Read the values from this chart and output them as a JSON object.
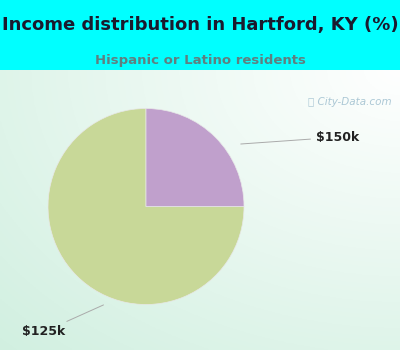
{
  "title": "Income distribution in Hartford, KY (%)",
  "subtitle": "Hispanic or Latino residents",
  "title_color": "#1a1a2e",
  "subtitle_color": "#5f8080",
  "top_bg": "#00FFFF",
  "slices": [
    75.0,
    25.0
  ],
  "slice_colors": [
    "#C8D898",
    "#C0A0CC"
  ],
  "slice_labels": [
    "$125k",
    "$150k"
  ],
  "watermark": "City-Data.com",
  "startangle": 90,
  "title_fontsize": 13,
  "subtitle_fontsize": 9.5,
  "label_fontsize": 9
}
